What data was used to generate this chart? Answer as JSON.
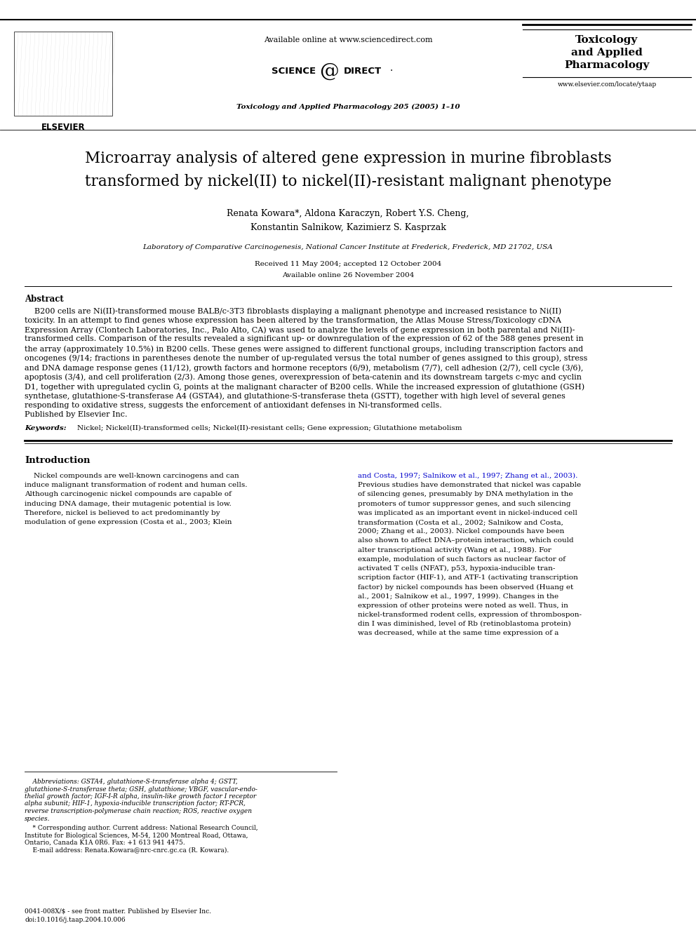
{
  "bg_color": "#ffffff",
  "header_available_online": "Available online at www.sciencedirect.com",
  "journal_info_center": "Toxicology and Applied Pharmacology 205 (2005) 1–10",
  "journal_name_right_line1": "Toxicology",
  "journal_name_right_line2": "and Applied",
  "journal_name_right_line3": "Pharmacology",
  "journal_url_right": "www.elsevier.com/locate/ytaap",
  "title_line1": "Microarray analysis of altered gene expression in murine fibroblasts",
  "title_line2": "transformed by nickel(II) to nickel(II)-resistant malignant phenotype",
  "authors_line1": "Renata Kowara*, Aldona Karaczyn, Robert Y.S. Cheng,",
  "authors_line2": "Konstantin Salnikow, Kazimierz S. Kasprzak",
  "affiliation": "Laboratory of Comparative Carcinogenesis, National Cancer Institute at Frederick, Frederick, MD 21702, USA",
  "received": "Received 11 May 2004; accepted 12 October 2004",
  "available_online": "Available online 26 November 2004",
  "abstract_title": "Abstract",
  "abstract_lines": [
    "    B200 cells are Ni(II)-transformed mouse BALB/c-3T3 fibroblasts displaying a malignant phenotype and increased resistance to Ni(II)",
    "toxicity. In an attempt to find genes whose expression has been altered by the transformation, the Atlas Mouse Stress/Toxicology cDNA",
    "Expression Array (Clontech Laboratories, Inc., Palo Alto, CA) was used to analyze the levels of gene expression in both parental and Ni(II)-",
    "transformed cells. Comparison of the results revealed a significant up- or downregulation of the expression of 62 of the 588 genes present in",
    "the array (approximately 10.5%) in B200 cells. These genes were assigned to different functional groups, including transcription factors and",
    "oncogenes (9/14; fractions in parentheses denote the number of up-regulated versus the total number of genes assigned to this group), stress",
    "and DNA damage response genes (11/12), growth factors and hormone receptors (6/9), metabolism (7/7), cell adhesion (2/7), cell cycle (3/6),",
    "apoptosis (3/4), and cell proliferation (2/3). Among those genes, overexpression of beta-catenin and its downstream targets c-myc and cyclin",
    "D1, together with upregulated cyclin G, points at the malignant character of B200 cells. While the increased expression of glutathione (GSH)",
    "synthetase, glutathione-S-transferase A4 (GSTA4), and glutathione-S-transferase theta (GSTT), together with high level of several genes",
    "responding to oxidative stress, suggests the enforcement of antioxidant defenses in Ni-transformed cells.",
    "Published by Elsevier Inc."
  ],
  "keywords_label": "Keywords: ",
  "keywords_text": "Nickel; Nickel(II)-transformed cells; Nickel(II)-resistant cells; Gene expression; Glutathione metabolism",
  "intro_title": "Introduction",
  "intro_left_lines": [
    "    Nickel compounds are well-known carcinogens and can",
    "induce malignant transformation of rodent and human cells.",
    "Although carcinogenic nickel compounds are capable of",
    "inducing DNA damage, their mutagenic potential is low.",
    "Therefore, nickel is believed to act predominantly by",
    "modulation of gene expression (Costa et al., 2003; Klein"
  ],
  "intro_right_line1_blue": "and Costa, 1997; Salnikow et al., 1997; Zhang et al., 2003).",
  "intro_right_lines": [
    "Previous studies have demonstrated that nickel was capable",
    "of silencing genes, presumably by DNA methylation in the",
    "promoters of tumor suppressor genes, and such silencing",
    "was implicated as an important event in nickel-induced cell",
    "transformation (Costa et al., 2002; Salnikow and Costa,",
    "2000; Zhang et al., 2003). Nickel compounds have been",
    "also shown to affect DNA–protein interaction, which could",
    "alter transcriptional activity (Wang et al., 1988). For",
    "example, modulation of such factors as nuclear factor of",
    "activated T cells (NFAT), p53, hypoxia-inducible tran-",
    "scription factor (HIF-1), and ATF-1 (activating transcription",
    "factor) by nickel compounds has been observed (Huang et",
    "al., 2001; Salnikow et al., 1997, 1999). Changes in the",
    "expression of other proteins were noted as well. Thus, in",
    "nickel-transformed rodent cells, expression of thrombospon-",
    "din I was diminished, level of Rb (retinoblastoma protein)",
    "was decreased, while at the same time expression of a"
  ],
  "footnote_abbr_lines": [
    "    Abbreviations: GSTA4, glutathione-S-transferase alpha 4; GSTT,",
    "glutathione-S-transferase theta; GSH, glutathione; VBGF, vascular-endo-",
    "thelial growth factor; IGF-I-R alpha, insulin-like growth factor I receptor",
    "alpha subunit; HIF-1, hypoxia-inducible transcription factor; RT-PCR,",
    "reverse transcription-polymerase chain reaction; ROS, reactive oxygen",
    "species."
  ],
  "footnote_corr_lines": [
    "    * Corresponding author. Current address: National Research Council,",
    "Institute for Biological Sciences, M-54, 1200 Montreal Road, Ottawa,",
    "Ontario, Canada K1A 0R6. Fax: +1 613 941 4475."
  ],
  "footnote_email": "    E-mail address: Renata.Kowara@nrc-cnrc.gc.ca (R. Kowara).",
  "copyright_line1": "0041-008X/$ - see front matter. Published by Elsevier Inc.",
  "copyright_line2": "doi:10.1016/j.taap.2004.10.006",
  "blue_color": "#0000CC",
  "text_color": "#000000",
  "link_color": "#000088"
}
